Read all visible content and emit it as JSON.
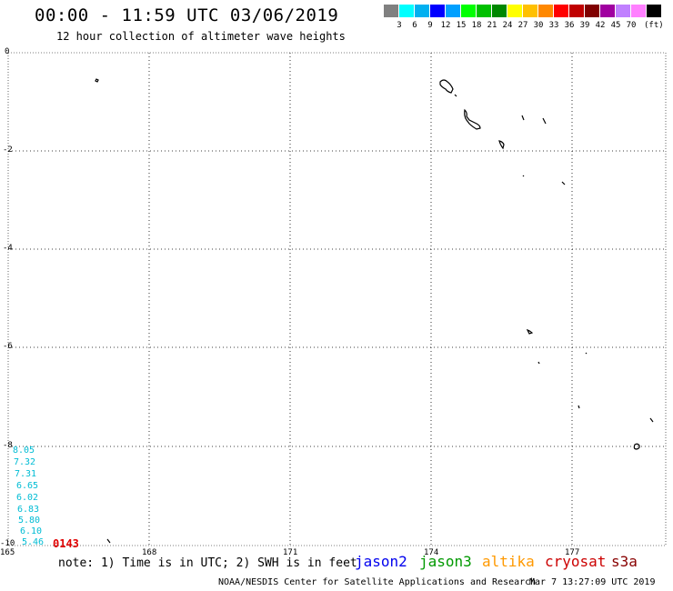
{
  "title": "00:00 - 11:59 UTC 03/06/2019",
  "subtitle": "12 hour collection of altimeter wave heights",
  "legend": {
    "unit": "(ft)",
    "items": [
      {
        "label": "",
        "color": "#808080"
      },
      {
        "label": "3",
        "color": "#00ffff"
      },
      {
        "label": "6",
        "color": "#00b0f0"
      },
      {
        "label": "9",
        "color": "#0000ff"
      },
      {
        "label": "12",
        "color": "#00a0ff"
      },
      {
        "label": "15",
        "color": "#00ff00"
      },
      {
        "label": "18",
        "color": "#00c000"
      },
      {
        "label": "21",
        "color": "#008800"
      },
      {
        "label": "24",
        "color": "#ffff00"
      },
      {
        "label": "27",
        "color": "#ffc000"
      },
      {
        "label": "30",
        "color": "#ff8800"
      },
      {
        "label": "33",
        "color": "#ff0000"
      },
      {
        "label": "36",
        "color": "#c00000"
      },
      {
        "label": "39",
        "color": "#800000"
      },
      {
        "label": "42",
        "color": "#a000a0"
      },
      {
        "label": "45",
        "color": "#c080ff"
      },
      {
        "label": "70",
        "color": "#ff80ff"
      },
      {
        "label": "",
        "color": "#000000"
      }
    ]
  },
  "axes": {
    "lat_labels": [
      "0",
      "-2",
      "-4",
      "-6",
      "-8",
      "-10"
    ],
    "lon_labels": [
      "165",
      "168",
      "171",
      "174",
      "177"
    ]
  },
  "track": {
    "swh_values": [
      "8.05",
      "7.32",
      "7.31",
      "6.65",
      "6.02",
      "6.83",
      "5.80",
      "6.10",
      "5.46"
    ],
    "time_label": "0143",
    "color": "#00bcd4",
    "time_color": "#e00000"
  },
  "note": "note: 1) Time is in UTC; 2) SWH is in feet",
  "satellites": [
    {
      "name": "jason2",
      "color": "#0000ee"
    },
    {
      "name": "jason3",
      "color": "#009900"
    },
    {
      "name": "altika",
      "color": "#ff9900"
    },
    {
      "name": "cryosat",
      "color": "#cc0000"
    },
    {
      "name": "s3a",
      "color": "#880000"
    }
  ],
  "credit": "NOAA/NESDIS Center for Satellite Applications and Research",
  "timestamp": "Mar  7 13:27:09 UTC 2019"
}
